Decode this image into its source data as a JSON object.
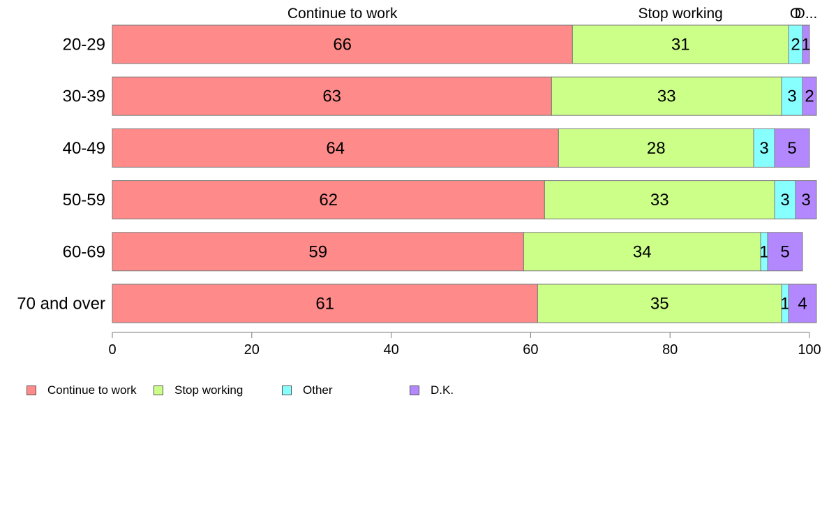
{
  "chart_data": {
    "type": "bar",
    "orientation": "horizontal",
    "stacked": true,
    "categories": [
      "20-29",
      "30-39",
      "40-49",
      "50-59",
      "60-69",
      "70 and over"
    ],
    "series": [
      {
        "name": "Continue to work",
        "color": "#ff8a8a",
        "values": [
          66,
          63,
          64,
          62,
          59,
          61
        ]
      },
      {
        "name": "Stop working",
        "color": "#ccff88",
        "values": [
          31,
          33,
          28,
          33,
          34,
          35
        ]
      },
      {
        "name": "Other",
        "color": "#88ffff",
        "values": [
          2,
          3,
          3,
          3,
          1,
          1
        ]
      },
      {
        "name": "D.K.",
        "color": "#b388ff",
        "values": [
          1,
          2,
          5,
          3,
          5,
          4
        ]
      }
    ],
    "top_labels": [
      "Continue to work",
      "Stop working",
      "O",
      "D..."
    ],
    "xlim": [
      0,
      100
    ],
    "xticks": [
      "0",
      "20",
      "40",
      "60",
      "80",
      "100"
    ],
    "grid": false,
    "legend_position": "bottom-left"
  }
}
